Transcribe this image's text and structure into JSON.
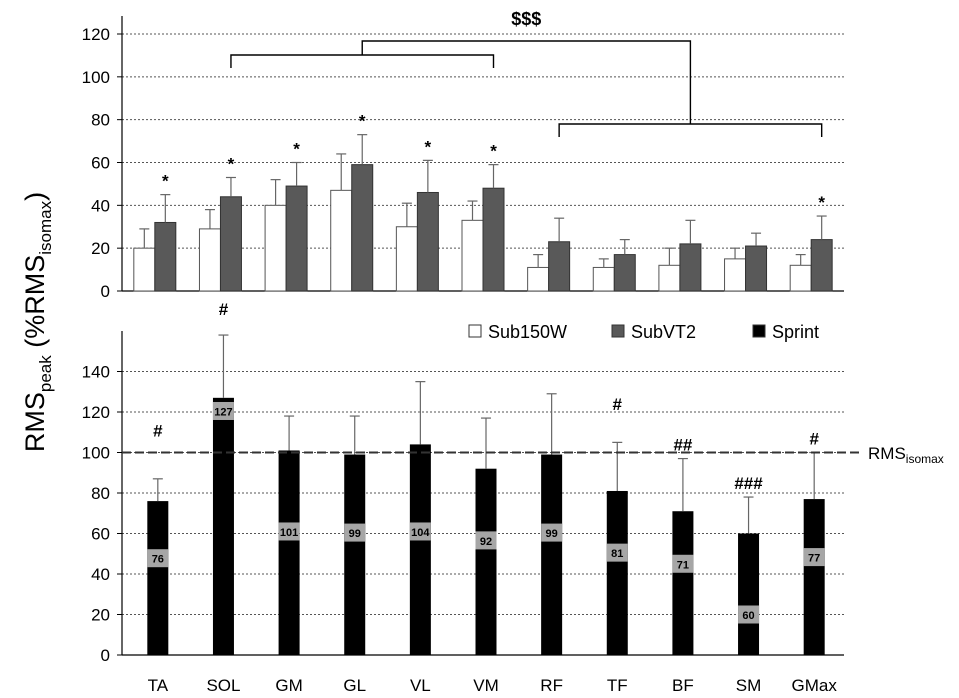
{
  "chart_data": [
    {
      "type": "bar",
      "panel": "top",
      "categories": [
        "TA",
        "SOL",
        "GM",
        "GL",
        "VL",
        "VM",
        "RF",
        "TF",
        "BF",
        "SM",
        "GMax"
      ],
      "ylim": [
        0,
        120
      ],
      "yticks": [
        0,
        20,
        40,
        60,
        80,
        100,
        120
      ],
      "grid": true,
      "legend_position": "top-right",
      "series": [
        {
          "name": "Sub150W",
          "color": "#ffffff",
          "values": [
            20,
            29,
            40,
            47,
            30,
            33,
            11,
            11,
            12,
            15,
            12
          ],
          "errors": [
            9,
            9,
            12,
            17,
            11,
            9,
            6,
            4,
            8,
            5,
            5
          ]
        },
        {
          "name": "SubVT2",
          "color": "#595959",
          "values": [
            32,
            44,
            49,
            59,
            46,
            48,
            23,
            17,
            22,
            21,
            24
          ],
          "errors": [
            13,
            9,
            11,
            14,
            15,
            11,
            11,
            7,
            11,
            6,
            11
          ]
        }
      ],
      "star_marks": [
        "*",
        "*",
        "*",
        "*",
        "*",
        "*",
        "",
        "",
        "",
        "",
        "*"
      ],
      "bracket_label": "$$$"
    },
    {
      "type": "bar",
      "panel": "bottom",
      "categories": [
        "TA",
        "SOL",
        "GM",
        "GL",
        "VL",
        "VM",
        "RF",
        "TF",
        "BF",
        "SM",
        "GMax"
      ],
      "ylim": [
        0,
        160
      ],
      "yticks": [
        0,
        20,
        40,
        60,
        80,
        100,
        120,
        140
      ],
      "grid": true,
      "series": [
        {
          "name": "Sprint",
          "color": "#000000",
          "values": [
            76,
            127,
            101,
            99,
            104,
            92,
            99,
            81,
            71,
            60,
            77
          ],
          "errors": [
            11,
            31,
            17,
            19,
            31,
            25,
            30,
            24,
            26,
            18,
            23
          ]
        }
      ],
      "value_labels": [
        "76",
        "127",
        "101",
        "99",
        "104",
        "92",
        "99",
        "81",
        "71",
        "60",
        "77"
      ],
      "hash_marks": [
        "#",
        "#",
        "",
        "",
        "",
        "",
        "",
        "#",
        "##",
        "###",
        "#"
      ],
      "reference_line": {
        "value": 100,
        "label_main": "RMS",
        "label_sub": "isomax"
      }
    }
  ],
  "ylabel": {
    "main_a": "RMS",
    "sub_a": "peak",
    "main_b": " (%RMS",
    "sub_b": "isomax",
    "main_c": ")"
  }
}
